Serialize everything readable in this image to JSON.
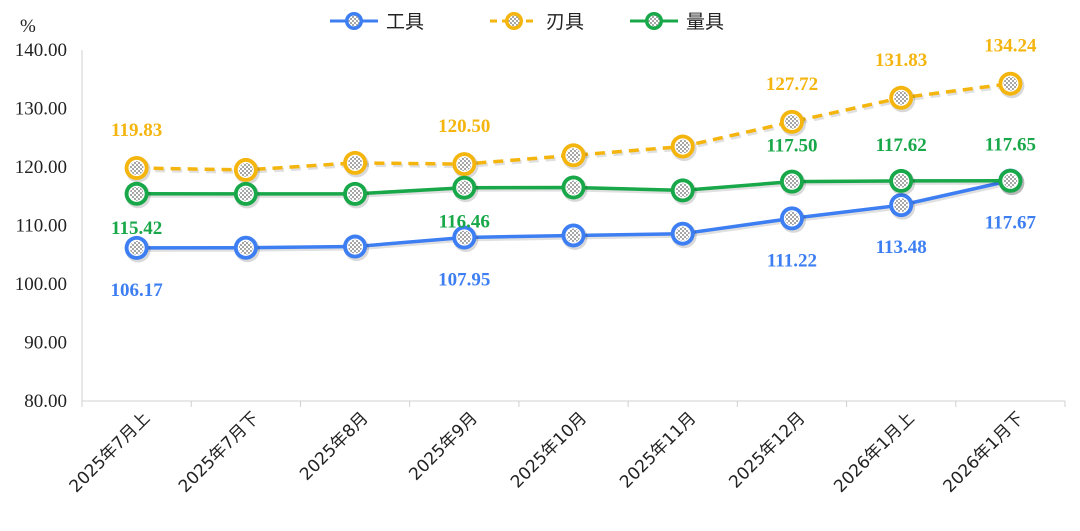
{
  "chart_data": {
    "type": "line",
    "ylabel": "%",
    "ylim": [
      80,
      140
    ],
    "yticks": [
      "80.00",
      "90.00",
      "100.00",
      "110.00",
      "120.00",
      "130.00",
      "140.00"
    ],
    "grid": false,
    "legend_position": "top-center",
    "categories": [
      "2025年7月上",
      "2025年7月下",
      "2025年8月",
      "2025年9月",
      "2025年10月",
      "2025年11月",
      "2025年12月",
      "2026年1月上",
      "2026年1月下"
    ],
    "series": [
      {
        "name": "工具",
        "color": "#3d7ef2",
        "style": "solid",
        "values": [
          106.17,
          106.2,
          106.4,
          107.95,
          108.3,
          108.6,
          111.22,
          113.48,
          117.67
        ],
        "labels": [
          "106.17",
          null,
          null,
          "107.95",
          null,
          null,
          "111.22",
          "113.48",
          "117.67"
        ],
        "label_side": "below"
      },
      {
        "name": "刃具",
        "color": "#f5b50f",
        "style": "dashed",
        "values": [
          119.83,
          119.5,
          120.7,
          120.5,
          122.0,
          123.5,
          127.72,
          131.83,
          134.24
        ],
        "labels": [
          "119.83",
          null,
          null,
          "120.50",
          null,
          null,
          "127.72",
          "131.83",
          "134.24"
        ],
        "label_side": "above"
      },
      {
        "name": "量具",
        "color": "#18a849",
        "style": "solid",
        "values": [
          115.42,
          115.4,
          115.4,
          116.46,
          116.5,
          116.0,
          117.5,
          117.62,
          117.65
        ],
        "labels": [
          "115.42",
          null,
          null,
          "116.46",
          null,
          null,
          "117.50",
          "117.62",
          "117.65"
        ],
        "label_side": "mixed"
      }
    ]
  }
}
